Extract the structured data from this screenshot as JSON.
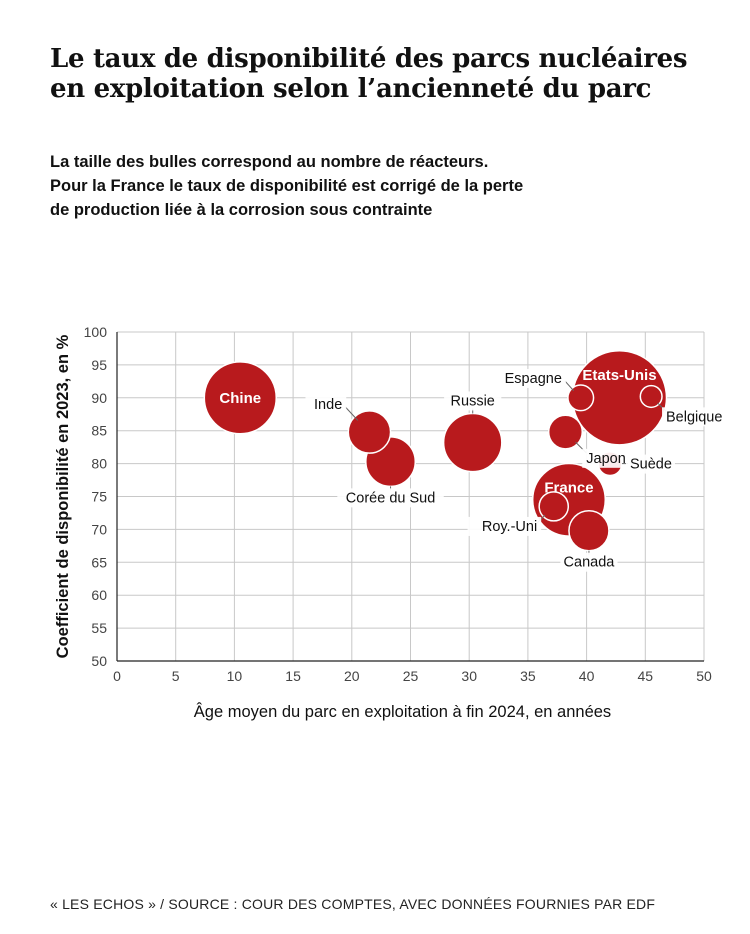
{
  "header": {
    "title_lines": [
      "Le taux de disponibilité des parcs nucléaires",
      "en exploitation selon l’ancienneté du parc"
    ],
    "subtitle_lines": [
      "La taille des bulles correspond au nombre de réacteurs.",
      "Pour la France le taux de disponibilité est corrigé de la perte",
      "de production liée à la corrosion sous contrainte"
    ]
  },
  "footer": {
    "source": "« LES ECHOS » / SOURCE : COUR DES COMPTES, AVEC DONNÉES FOURNIES PAR EDF"
  },
  "colors": {
    "bubble": "#b81a1d",
    "grid": "#c8c8c8",
    "axis": "#222222"
  },
  "chart_data": {
    "type": "bubble",
    "xlabel": "Âge moyen du parc en exploitation à fin 2024, en années",
    "ylabel": "Coefficient de disponibilité en 2023, en %",
    "xlim": [
      0,
      50
    ],
    "ylim": [
      50,
      100
    ],
    "xticks": [
      0,
      5,
      10,
      15,
      20,
      25,
      30,
      35,
      40,
      45,
      50
    ],
    "yticks": [
      50,
      55,
      60,
      65,
      70,
      75,
      80,
      85,
      90,
      95,
      100
    ],
    "grid": true,
    "points": [
      {
        "name": "Chine",
        "x": 10.5,
        "y": 90.0,
        "reactors": 55,
        "label_position": "inside"
      },
      {
        "name": "Inde",
        "x": 21.5,
        "y": 84.8,
        "reactors": 19,
        "label_position": "upper-left"
      },
      {
        "name": "Corée du Sud",
        "x": 23.3,
        "y": 80.3,
        "reactors": 26,
        "label_position": "below"
      },
      {
        "name": "Russie",
        "x": 30.3,
        "y": 83.2,
        "reactors": 36,
        "label_position": "above"
      },
      {
        "name": "Espagne",
        "x": 39.5,
        "y": 90.0,
        "reactors": 7,
        "label_position": "upper-left"
      },
      {
        "name": "Etats-Unis",
        "x": 42.8,
        "y": 90.0,
        "reactors": 94,
        "label_position": "inside-top"
      },
      {
        "name": "Belgique",
        "x": 45.5,
        "y": 90.2,
        "reactors": 5,
        "label_position": "lower-right"
      },
      {
        "name": "Japon",
        "x": 38.2,
        "y": 84.8,
        "reactors": 12,
        "label_position": "lower-right"
      },
      {
        "name": "Suède",
        "x": 42.0,
        "y": 80.0,
        "reactors": 6,
        "label_position": "right"
      },
      {
        "name": "France",
        "x": 38.5,
        "y": 74.5,
        "reactors": 56,
        "label_position": "inside-top"
      },
      {
        "name": "Roy.-Uni",
        "x": 37.2,
        "y": 73.5,
        "reactors": 9,
        "label_position": "lower-left"
      },
      {
        "name": "Canada",
        "x": 40.2,
        "y": 69.8,
        "reactors": 17,
        "label_position": "below"
      }
    ]
  }
}
